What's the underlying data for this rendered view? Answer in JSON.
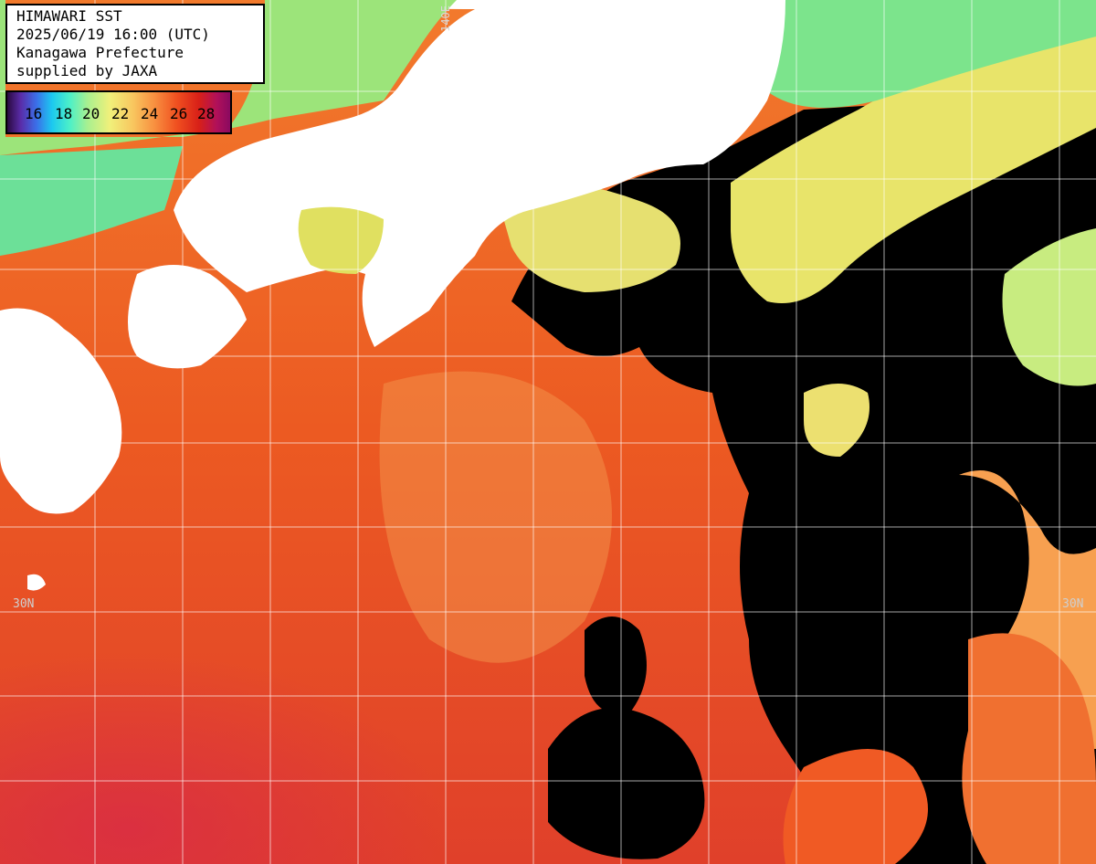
{
  "info": {
    "title": "HIMAWARI SST",
    "datetime": "2025/06/19 16:00 (UTC)",
    "region": "Kanagawa Prefecture",
    "credit": "supplied by JAXA"
  },
  "legend": {
    "ticks": [
      "16",
      "18",
      "20",
      "22",
      "24",
      "26",
      "28"
    ],
    "colors": {
      "cool": "#3b6ee8",
      "mild": "#a8f090",
      "warm": "#f89040",
      "hot": "#d82018",
      "cloud": "#000000",
      "land": "#ffffff"
    }
  },
  "grid": {
    "lat_label_left": "30N",
    "lat_label_right": "30N",
    "lon_label": "140E"
  }
}
